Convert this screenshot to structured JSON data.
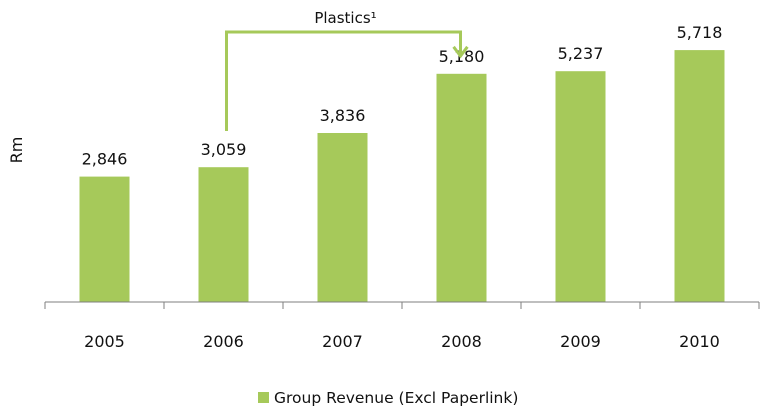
{
  "chart_data": {
    "type": "bar",
    "categories": [
      "2005",
      "2006",
      "2007",
      "2008",
      "2009",
      "2010"
    ],
    "series": [
      {
        "name": "Group Revenue (Excl Paperlink)",
        "values": [
          2846,
          3059,
          3836,
          5180,
          5237,
          5718
        ],
        "data_labels": [
          "2,846",
          "3,059",
          "3,836",
          "5,180",
          "5,237",
          "5,718"
        ],
        "color": "#a6c95a"
      }
    ],
    "ylabel": "Rm",
    "xlabel": "",
    "ylim": [
      0,
      6400
    ],
    "grid": false,
    "legend": {
      "position": "bottom-center"
    },
    "annotations": [
      {
        "text": "Plastics¹",
        "from_category": "2006",
        "to_category": "2008",
        "color": "#a6c95a"
      }
    ]
  }
}
